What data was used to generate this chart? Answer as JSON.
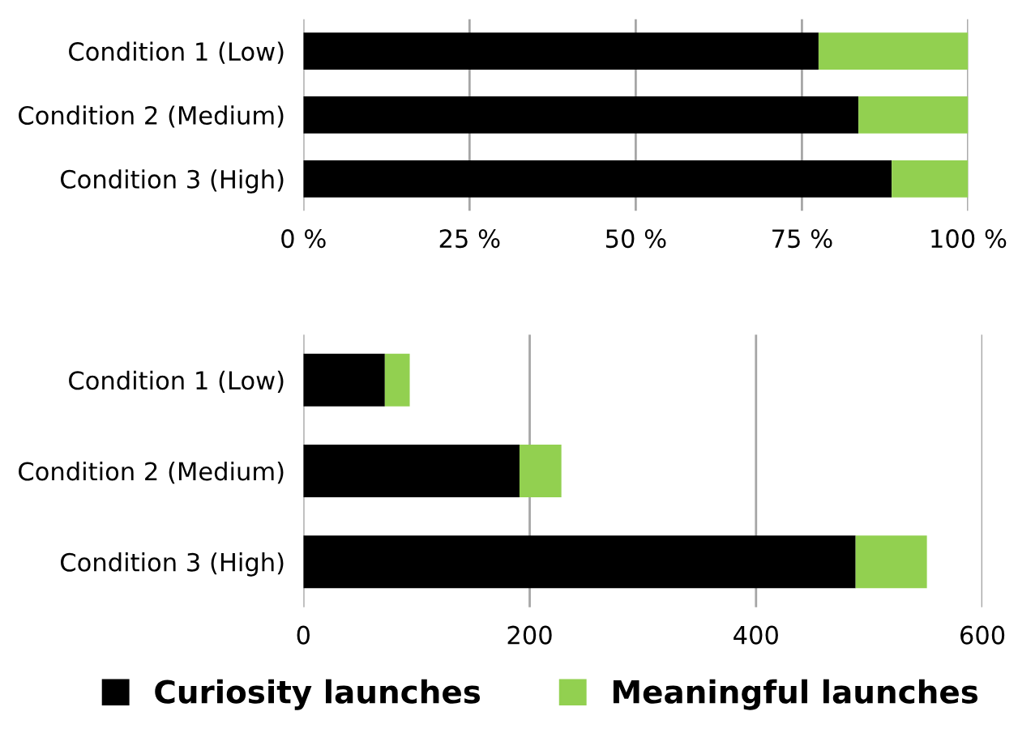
{
  "chart_data": [
    {
      "type": "bar",
      "orientation": "horizontal",
      "stacked": true,
      "categories": [
        "Condition 1 (Low)",
        "Condition 2 (Medium)",
        "Condition 3 (High)"
      ],
      "series": [
        {
          "color": "#000000",
          "values": [
            77.5,
            83.5,
            88.5
          ]
        },
        {
          "color": "#92d050",
          "values": [
            22.5,
            16.5,
            11.5
          ]
        }
      ],
      "xlim": [
        0,
        100
      ],
      "xticks": [
        {
          "value": 0,
          "label": "0 %"
        },
        {
          "value": 25,
          "label": "25 %"
        },
        {
          "value": 50,
          "label": "50 %"
        },
        {
          "value": 75,
          "label": "75 %"
        },
        {
          "value": 100,
          "label": "100 %"
        }
      ],
      "grid": "x",
      "legend": false
    },
    {
      "type": "bar",
      "orientation": "horizontal",
      "stacked": true,
      "categories": [
        "Condition 1 (Low)",
        "Condition 2 (Medium)",
        "Condition 3 (High)"
      ],
      "series": [
        {
          "name": "Curiosity launches",
          "color": "#000000",
          "values": [
            72,
            191,
            488
          ]
        },
        {
          "name": "Meaningful launches",
          "color": "#92d050",
          "values": [
            22,
            37,
            63
          ]
        }
      ],
      "xlim": [
        0,
        600
      ],
      "xticks": [
        0,
        200,
        400,
        600
      ],
      "grid": "x",
      "legend": "bottom"
    }
  ]
}
